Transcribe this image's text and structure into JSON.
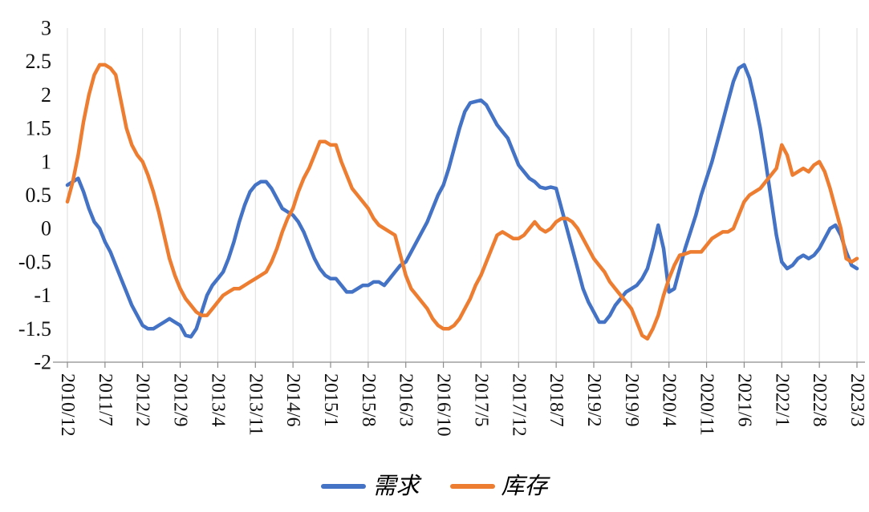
{
  "chart_data": {
    "type": "line",
    "title": "",
    "xlabel": "",
    "ylabel": "",
    "x_axis": {
      "start": "2010/12",
      "end": "2023/3",
      "frequency": "monthly"
    },
    "x_tick_interval": 7,
    "x_tick_labels": [
      "2010/12",
      "2011/7",
      "2012/2",
      "2012/9",
      "2013/4",
      "2013/11",
      "2014/6",
      "2015/1",
      "2015/8",
      "2016/3",
      "2016/10",
      "2017/5",
      "2017/12",
      "2018/7",
      "2019/2",
      "2019/9",
      "2020/4",
      "2020/11",
      "2021/6",
      "2022/1",
      "2022/8",
      "2023/3"
    ],
    "y_tick_labels": [
      "3",
      "2.5",
      "2",
      "1.5",
      "1",
      "0.5",
      "0",
      "-0.5",
      "-1",
      "-1.5",
      "-2"
    ],
    "ylim": [
      -2,
      3
    ],
    "grid": "vertical-light",
    "legend_position": "bottom-center",
    "series": [
      {
        "name": "需求",
        "color": "#4472C4",
        "values": [
          0.65,
          0.7,
          0.75,
          0.55,
          0.3,
          0.1,
          0.0,
          -0.2,
          -0.35,
          -0.55,
          -0.75,
          -0.95,
          -1.15,
          -1.3,
          -1.45,
          -1.5,
          -1.5,
          -1.45,
          -1.4,
          -1.35,
          -1.4,
          -1.45,
          -1.6,
          -1.62,
          -1.5,
          -1.25,
          -1.0,
          -0.85,
          -0.75,
          -0.65,
          -0.45,
          -0.2,
          0.1,
          0.35,
          0.55,
          0.65,
          0.7,
          0.7,
          0.6,
          0.45,
          0.3,
          0.25,
          0.2,
          0.1,
          -0.05,
          -0.25,
          -0.45,
          -0.6,
          -0.7,
          -0.75,
          -0.75,
          -0.85,
          -0.95,
          -0.95,
          -0.9,
          -0.85,
          -0.85,
          -0.8,
          -0.8,
          -0.85,
          -0.75,
          -0.65,
          -0.55,
          -0.5,
          -0.35,
          -0.2,
          -0.05,
          0.1,
          0.3,
          0.5,
          0.65,
          0.9,
          1.2,
          1.5,
          1.75,
          1.88,
          1.9,
          1.92,
          1.85,
          1.7,
          1.55,
          1.45,
          1.35,
          1.15,
          0.95,
          0.85,
          0.75,
          0.7,
          0.62,
          0.6,
          0.62,
          0.6,
          0.3,
          0.0,
          -0.3,
          -0.6,
          -0.9,
          -1.1,
          -1.25,
          -1.4,
          -1.4,
          -1.3,
          -1.15,
          -1.05,
          -0.95,
          -0.9,
          -0.85,
          -0.75,
          -0.6,
          -0.3,
          0.05,
          -0.3,
          -0.95,
          -0.9,
          -0.6,
          -0.3,
          -0.05,
          0.2,
          0.5,
          0.75,
          1.0,
          1.3,
          1.6,
          1.9,
          2.2,
          2.4,
          2.45,
          2.25,
          1.9,
          1.5,
          1.0,
          0.45,
          -0.1,
          -0.5,
          -0.6,
          -0.55,
          -0.45,
          -0.4,
          -0.45,
          -0.4,
          -0.3,
          -0.15,
          0.0,
          0.05,
          -0.1,
          -0.35,
          -0.55,
          -0.6
        ]
      },
      {
        "name": "库存",
        "color": "#ED7D31",
        "values": [
          0.4,
          0.7,
          1.1,
          1.6,
          2.0,
          2.3,
          2.45,
          2.45,
          2.4,
          2.3,
          1.9,
          1.5,
          1.25,
          1.1,
          1.0,
          0.8,
          0.55,
          0.25,
          -0.1,
          -0.45,
          -0.7,
          -0.9,
          -1.05,
          -1.15,
          -1.25,
          -1.3,
          -1.3,
          -1.2,
          -1.1,
          -1.0,
          -0.95,
          -0.9,
          -0.9,
          -0.85,
          -0.8,
          -0.75,
          -0.7,
          -0.65,
          -0.5,
          -0.3,
          -0.05,
          0.15,
          0.3,
          0.55,
          0.75,
          0.9,
          1.1,
          1.3,
          1.3,
          1.25,
          1.25,
          1.0,
          0.8,
          0.6,
          0.5,
          0.4,
          0.3,
          0.15,
          0.05,
          0.0,
          -0.05,
          -0.1,
          -0.4,
          -0.7,
          -0.9,
          -1.0,
          -1.1,
          -1.2,
          -1.35,
          -1.45,
          -1.5,
          -1.5,
          -1.45,
          -1.35,
          -1.2,
          -1.05,
          -0.85,
          -0.7,
          -0.5,
          -0.3,
          -0.1,
          -0.05,
          -0.1,
          -0.15,
          -0.15,
          -0.1,
          0.0,
          0.1,
          0.0,
          -0.05,
          0.0,
          0.1,
          0.15,
          0.15,
          0.1,
          0.0,
          -0.15,
          -0.3,
          -0.45,
          -0.55,
          -0.65,
          -0.8,
          -0.9,
          -1.0,
          -1.1,
          -1.2,
          -1.4,
          -1.6,
          -1.65,
          -1.5,
          -1.3,
          -1.0,
          -0.75,
          -0.55,
          -0.4,
          -0.38,
          -0.35,
          -0.35,
          -0.35,
          -0.25,
          -0.15,
          -0.1,
          -0.05,
          -0.05,
          0.0,
          0.2,
          0.4,
          0.5,
          0.55,
          0.6,
          0.7,
          0.8,
          0.9,
          1.25,
          1.1,
          0.8,
          0.85,
          0.9,
          0.85,
          0.95,
          1.0,
          0.85,
          0.6,
          0.3,
          0.0,
          -0.45,
          -0.5,
          -0.45
        ]
      }
    ]
  },
  "legend": {
    "demand_label": "需求",
    "inventory_label": "库存"
  },
  "colors": {
    "demand": "#4472C4",
    "inventory": "#ED7D31",
    "axis": "#8C8C8C",
    "grid": "#DCDCDC",
    "text": "#111111"
  }
}
